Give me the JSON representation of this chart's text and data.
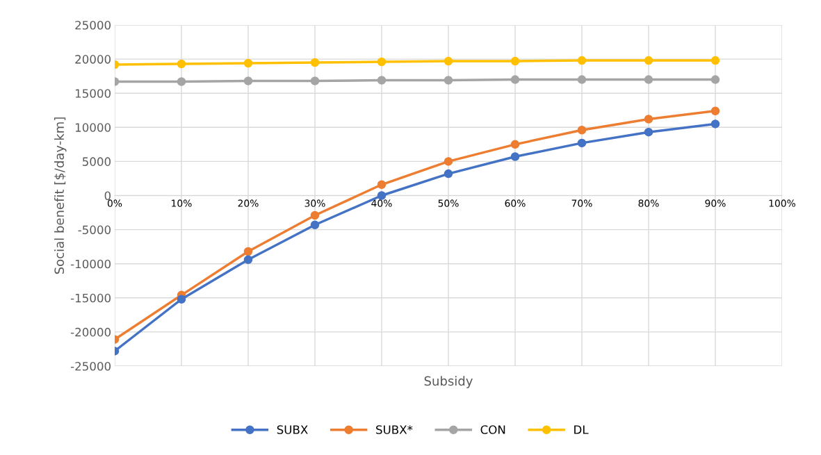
{
  "chart_data": {
    "type": "line",
    "xlabel": "Subsidy",
    "ylabel": "Social benefit [$/day-km]",
    "categories": [
      "0%",
      "10%",
      "20%",
      "30%",
      "40%",
      "50%",
      "60%",
      "70%",
      "80%",
      "90%",
      "100%"
    ],
    "series": [
      {
        "name": "SUBX",
        "color": "#4472c4",
        "values": [
          -22800,
          -15200,
          -9400,
          -4300,
          0,
          3200,
          5700,
          7700,
          9300,
          10500,
          null
        ]
      },
      {
        "name": "SUBX*",
        "color": "#ed7d31",
        "values": [
          -21100,
          -14600,
          -8200,
          -2900,
          1600,
          5000,
          7500,
          9600,
          11200,
          12400,
          null
        ]
      },
      {
        "name": "CON",
        "color": "#a5a5a5",
        "values": [
          16700,
          16700,
          16800,
          16800,
          16900,
          16900,
          17000,
          17000,
          17000,
          17000,
          null
        ]
      },
      {
        "name": "DL",
        "color": "#ffc000",
        "values": [
          19200,
          19300,
          19400,
          19500,
          19600,
          19700,
          19700,
          19800,
          19800,
          19800,
          null
        ]
      }
    ],
    "ylim": [
      -25000,
      25000
    ],
    "yticks": [
      -25000,
      -20000,
      -15000,
      -10000,
      -5000,
      0,
      5000,
      10000,
      15000,
      20000,
      25000
    ],
    "grid": true,
    "legend": "bottom",
    "marker": "circle",
    "line_style": "solid"
  }
}
